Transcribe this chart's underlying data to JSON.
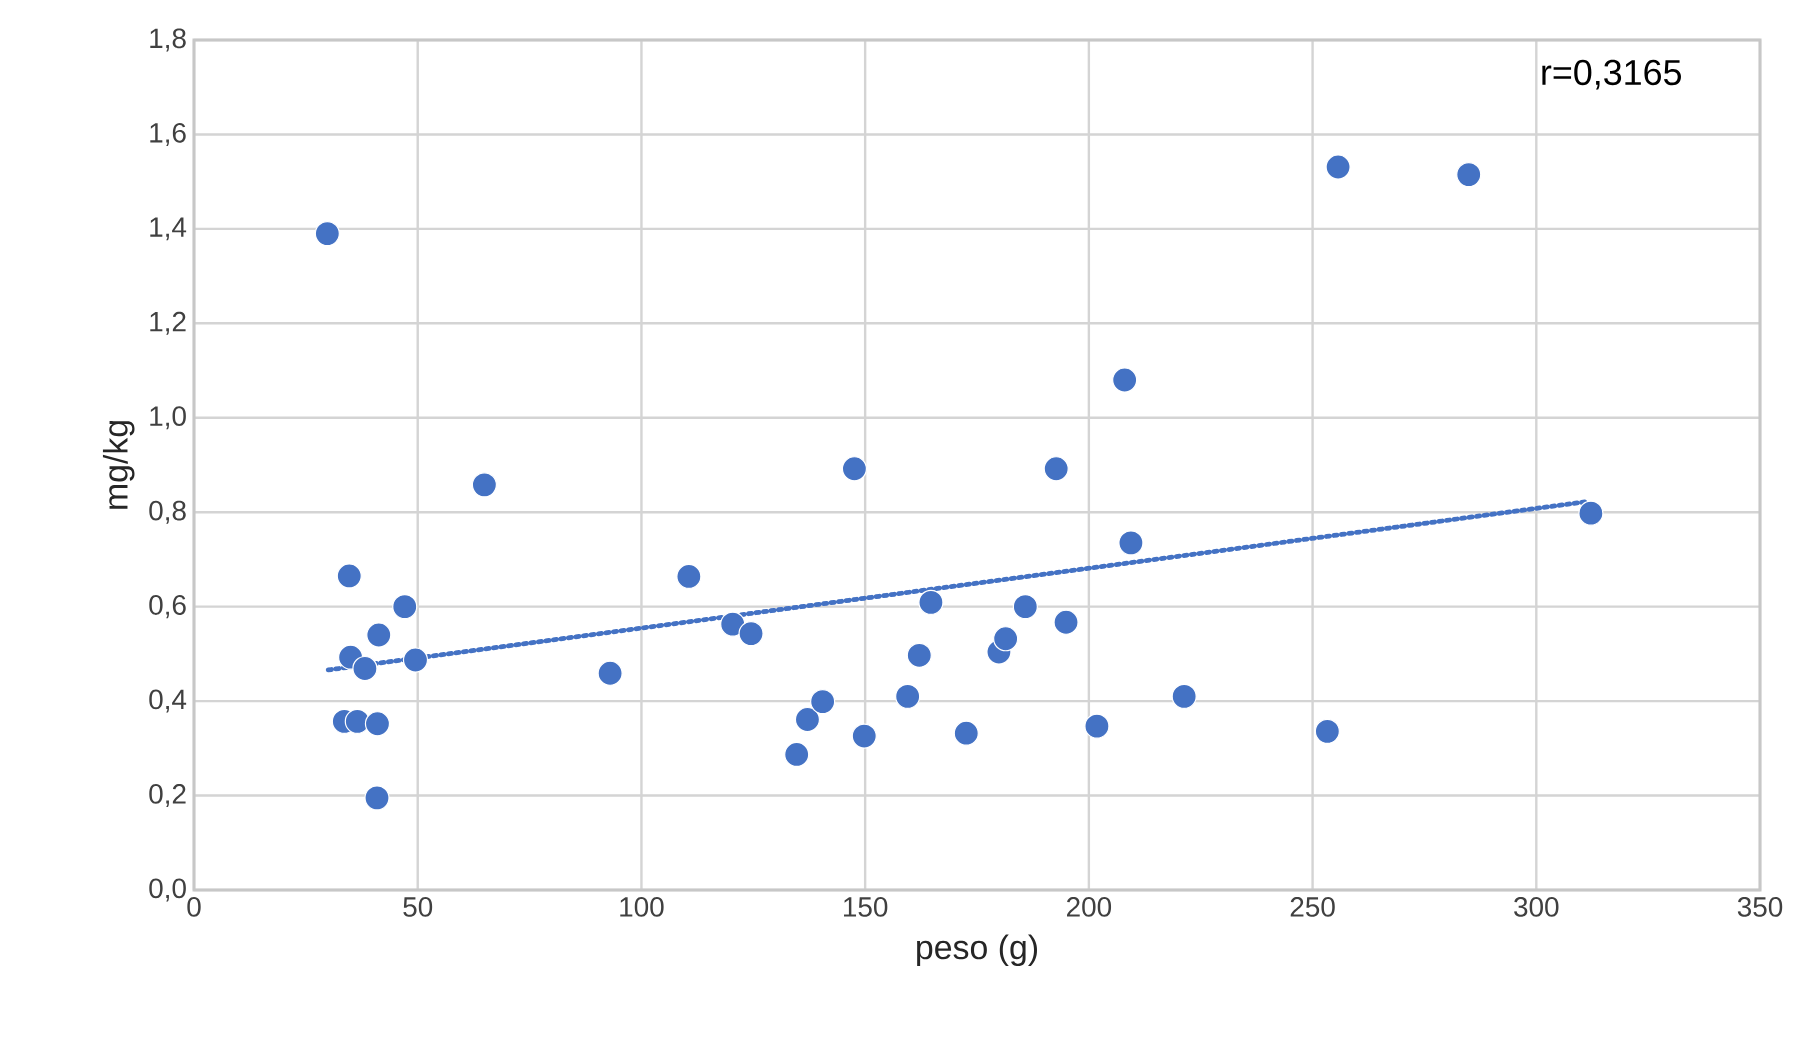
{
  "chart_data": {
    "type": "scatter",
    "xlabel": "peso (g)",
    "ylabel": "mg/kg",
    "annotations": [
      "r=0,3165"
    ],
    "xlim": [
      0,
      350
    ],
    "xticks": [
      0,
      50,
      100,
      150,
      200,
      250,
      300,
      350
    ],
    "ylim": [
      0,
      1.8
    ],
    "yticks": [
      {
        "value": 0,
        "label": "0,0"
      },
      {
        "value": 0.2,
        "label": "0,2"
      },
      {
        "value": 0.4,
        "label": "0,4"
      },
      {
        "value": 0.6,
        "label": "0,6"
      },
      {
        "value": 0.8,
        "label": "0,8"
      },
      {
        "value": 1.0,
        "label": "1,0"
      },
      {
        "value": 1.2,
        "label": "1,2"
      },
      {
        "value": 1.4,
        "label": "1,4"
      },
      {
        "value": 1.6,
        "label": "1,6"
      },
      {
        "value": 1.8,
        "label": "1,8"
      }
    ],
    "grid": true,
    "marker": "circle",
    "series": [
      {
        "color": "#4472c4",
        "x": [
          29.8,
          34.7,
          47.1,
          41.3,
          35.0,
          38.2,
          49.5,
          33.6,
          36.5,
          41.0,
          40.9,
          64.9,
          93.0,
          110.6,
          120.4,
          124.5,
          147.6,
          134.7,
          137.1,
          140.5,
          149.8,
          159.5,
          162.1,
          164.7,
          172.6,
          179.9,
          181.4,
          185.8,
          192.7,
          194.9,
          201.8,
          208.0,
          209.4,
          221.3,
          253.3,
          255.7,
          284.9,
          312.2
        ],
        "values": [
          1.39,
          0.665,
          0.6,
          0.54,
          0.493,
          0.469,
          0.487,
          0.357,
          0.357,
          0.352,
          0.195,
          0.858,
          0.459,
          0.664,
          0.563,
          0.543,
          0.892,
          0.287,
          0.361,
          0.399,
          0.326,
          0.41,
          0.497,
          0.609,
          0.332,
          0.504,
          0.532,
          0.6,
          0.892,
          0.567,
          0.347,
          1.08,
          0.735,
          0.41,
          0.336,
          1.531,
          1.515,
          0.798
        ]
      },
      {
        "type": "line",
        "color": "#4472c4",
        "line_style": "dotted",
        "marker": "none",
        "x": [
          30,
          311
        ],
        "values": [
          0.466,
          0.822
        ]
      }
    ]
  }
}
